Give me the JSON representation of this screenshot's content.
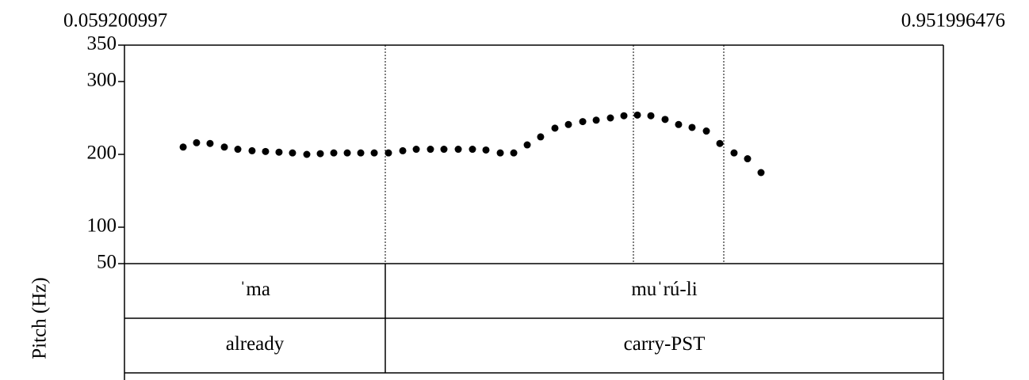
{
  "chart_data": {
    "type": "scatter",
    "ylabel": "Pitch (Hz)",
    "xlim": [
      0.059200997,
      0.951996476
    ],
    "xticks": [
      0.059200997,
      0.951996476
    ],
    "ylim": [
      50,
      350
    ],
    "yticks": [
      50,
      100,
      200,
      300,
      350
    ],
    "color": "#000000",
    "x": [
      0.1232,
      0.1378,
      0.1525,
      0.1681,
      0.1828,
      0.1983,
      0.213,
      0.2277,
      0.2424,
      0.258,
      0.2727,
      0.2874,
      0.3021,
      0.3168,
      0.3315,
      0.347,
      0.3626,
      0.3773,
      0.3928,
      0.4075,
      0.4231,
      0.4386,
      0.4533,
      0.4689,
      0.4836,
      0.4983,
      0.5129,
      0.5285,
      0.5432,
      0.5588,
      0.5735,
      0.589,
      0.6037,
      0.6184,
      0.6331,
      0.6486,
      0.6633,
      0.678,
      0.6936,
      0.7083,
      0.7238,
      0.7385,
      0.7532
    ],
    "values": [
      210,
      216,
      215,
      210,
      207,
      205,
      204,
      203,
      202,
      200,
      201,
      202,
      202,
      202,
      202,
      202,
      205,
      207,
      207,
      207,
      207,
      207,
      206,
      202,
      202,
      213,
      224,
      236,
      241,
      245,
      247,
      250,
      253,
      254,
      253,
      248,
      241,
      237,
      232,
      215,
      202,
      194,
      175
    ],
    "pitch_boundaries": [
      0.34355,
      0.61406,
      0.71259
    ],
    "tiers": [
      {
        "labels": [
          "ˈma",
          "muˈrú-li"
        ],
        "boundaries": [
          0.34355
        ]
      },
      {
        "labels": [
          "already",
          "carry-PST"
        ],
        "boundaries": [
          0.34355
        ]
      }
    ]
  }
}
